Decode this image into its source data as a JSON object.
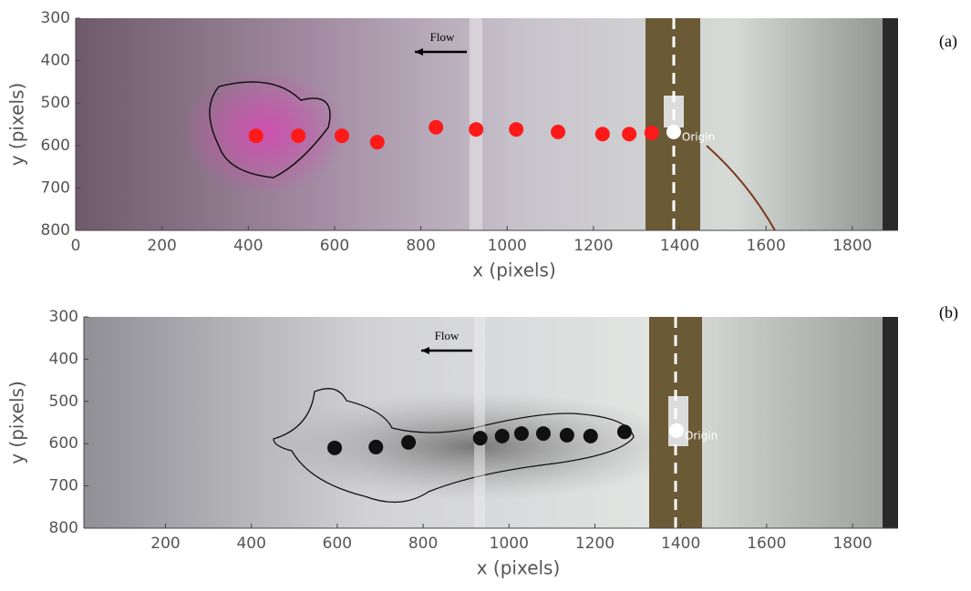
{
  "chart_data": [
    {
      "type": "scatter",
      "panel_label": "(a)",
      "x_label": "x (pixels)",
      "y_label": "y (pixels)",
      "annotations": [
        "Flow",
        "Origin"
      ],
      "xlim": [
        0,
        1906
      ],
      "ylim": [
        800,
        300
      ],
      "xticks": [
        0,
        200,
        400,
        600,
        800,
        1000,
        1200,
        1400,
        1600,
        1800
      ],
      "yticks": [
        300,
        400,
        500,
        600,
        700,
        800
      ],
      "series": [
        {
          "color": "#ff1a1a",
          "x": [
            418,
            516,
            617,
            699,
            835,
            928,
            1021,
            1118,
            1221,
            1283,
            1335
          ],
          "values": [
            577,
            577,
            577,
            592,
            557,
            562,
            562,
            568,
            573,
            573,
            570
          ]
        },
        {
          "color": "#ffffff",
          "x": [
            1386
          ],
          "values": [
            568
          ]
        }
      ]
    },
    {
      "type": "scatter",
      "panel_label": "(b)",
      "x_label": "x (pixels)",
      "y_label": "y (pixels)",
      "annotations": [
        "Flow",
        "Origin"
      ],
      "xlim": [
        10,
        1906
      ],
      "ylim": [
        800,
        300
      ],
      "xticks": [
        200,
        400,
        600,
        800,
        1000,
        1200,
        1400,
        1600,
        1800
      ],
      "yticks": [
        300,
        400,
        500,
        600,
        700,
        800
      ],
      "series": [
        {
          "color": "#111111",
          "x": [
            594,
            690,
            766,
            933,
            984,
            1029,
            1080,
            1135,
            1190,
            1269
          ],
          "values": [
            610,
            608,
            597,
            587,
            582,
            576,
            576,
            580,
            582,
            572
          ]
        },
        {
          "color": "#ffffff",
          "x": [
            1390
          ],
          "values": [
            569
          ]
        }
      ]
    }
  ]
}
